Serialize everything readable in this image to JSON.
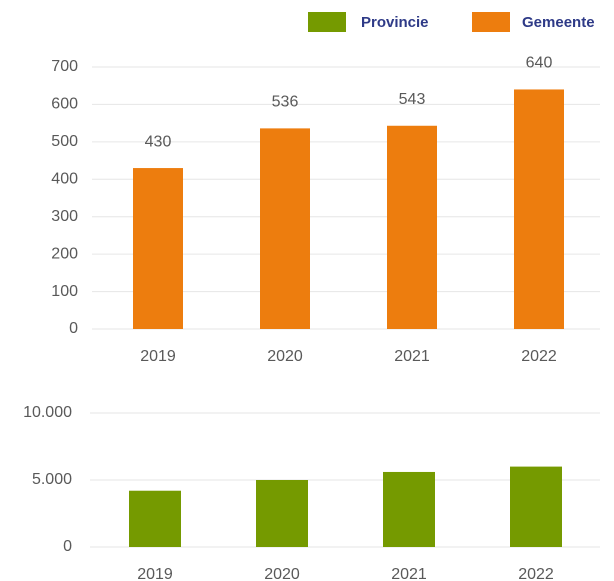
{
  "chart_data": [
    {
      "type": "bar",
      "categories": [
        "2019",
        "2020",
        "2021",
        "2022"
      ],
      "series": [
        {
          "name": "Gemeente",
          "color": "#ed7d0e",
          "values": [
            430,
            536,
            543,
            640
          ]
        }
      ],
      "ylim": [
        0,
        700
      ],
      "yticks": [
        0,
        100,
        200,
        300,
        400,
        500,
        600,
        700
      ],
      "grid": true,
      "data_labels": true
    },
    {
      "type": "bar",
      "categories": [
        "2019",
        "2020",
        "2021",
        "2022"
      ],
      "series": [
        {
          "name": "Provincie",
          "color": "#759a00",
          "values": [
            4200,
            5000,
            5600,
            6000
          ]
        }
      ],
      "ylim": [
        0,
        10000
      ],
      "yticks": [
        0,
        {
          "value": 5000,
          "label": "5.000"
        },
        {
          "value": 10000,
          "label": "10.000"
        }
      ],
      "grid": true,
      "data_labels": false
    }
  ]
}
